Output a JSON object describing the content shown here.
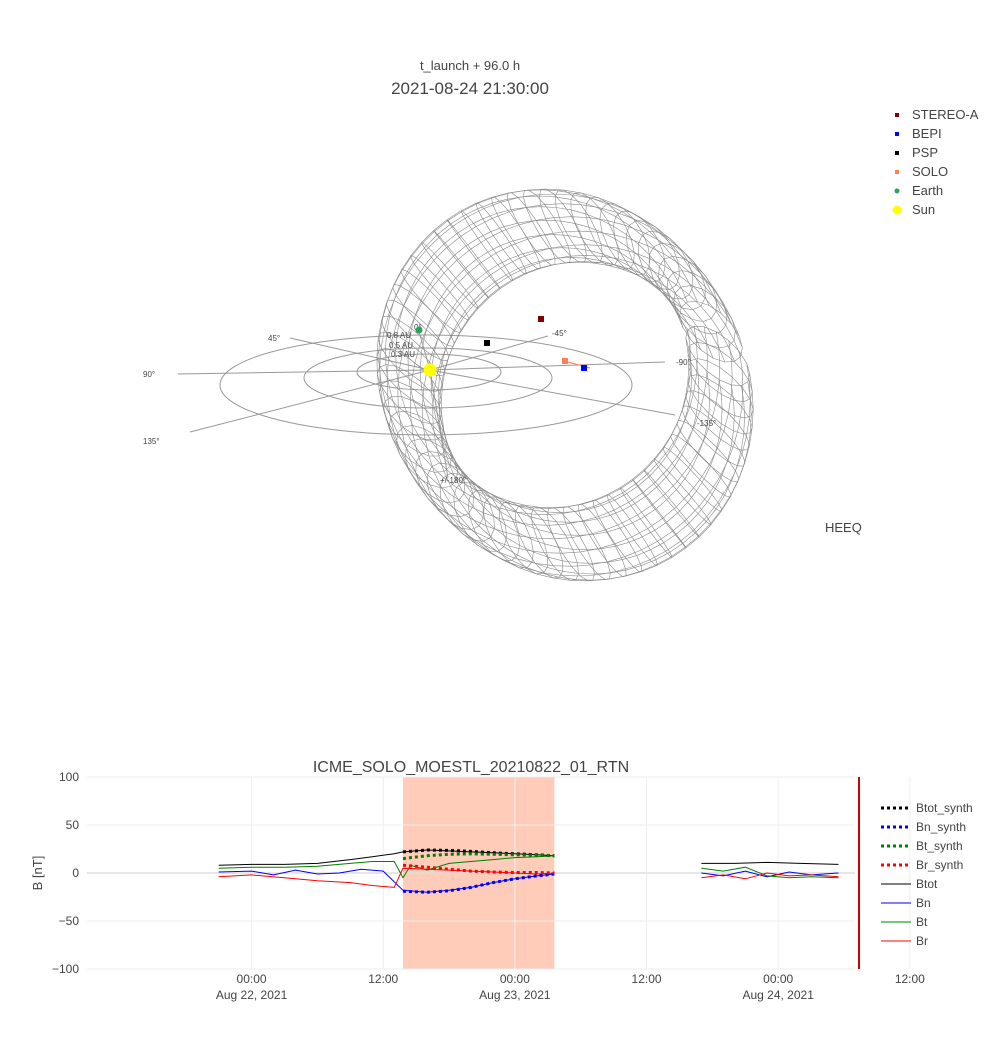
{
  "top_plot": {
    "subtitle": "t_launch + 96.0 h",
    "title": "2021-08-24 21:30:00",
    "frame_label": "HEEQ",
    "ring_labels": [
      "0.8 AU",
      "0.5 AU",
      "0.3 AU"
    ],
    "angle_labels": [
      "0°",
      "45°",
      "90°",
      "135°",
      "+/-180°",
      "-135°",
      "-90°",
      "-45°"
    ],
    "legend": [
      {
        "name": "STEREO-A",
        "color": "#800000",
        "marker": "square"
      },
      {
        "name": "BEPI",
        "color": "#0000ff",
        "marker": "square"
      },
      {
        "name": "PSP",
        "color": "#000000",
        "marker": "square"
      },
      {
        "name": "SOLO",
        "color": "#ff7f50",
        "marker": "square"
      },
      {
        "name": "Earth",
        "color": "#2ca25f",
        "marker": "circle"
      },
      {
        "name": "Sun",
        "color": "#ffff00",
        "marker": "circle"
      }
    ]
  },
  "chart_data": [
    {
      "type": "line",
      "title": "ICME_SOLO_MOESTL_20210822_01_RTN",
      "ylabel": "B [nT]",
      "ylim": [
        -100,
        100
      ],
      "yticks": [
        100,
        50,
        0,
        -50,
        -100
      ],
      "ytick_labels": [
        "100",
        "50",
        "0",
        "−50",
        "−100"
      ],
      "xlim_hours": [
        -15,
        55
      ],
      "x_ticks": [
        {
          "h": 0,
          "line1": "00:00",
          "line2": "Aug 22, 2021"
        },
        {
          "h": 12,
          "line1": "12:00",
          "line2": ""
        },
        {
          "h": 24,
          "line1": "00:00",
          "line2": "Aug 23, 2021"
        },
        {
          "h": 36,
          "line1": "12:00",
          "line2": ""
        },
        {
          "h": 48,
          "line1": "00:00",
          "line2": "Aug 24, 2021"
        },
        {
          "h": 60,
          "line1": "12:00",
          "line2": ""
        }
      ],
      "shaded_interval_hours": [
        13.8,
        27.6
      ],
      "shade_color": "#fdbba1",
      "grid": true,
      "legend_position": "right",
      "series": [
        {
          "name": "Btot_synth",
          "color": "#000000",
          "dash": true,
          "x": [
            13.8,
            16,
            18,
            20,
            22,
            24,
            26,
            27.6
          ],
          "y": [
            22,
            24,
            23.5,
            22.5,
            21,
            20,
            19,
            18
          ]
        },
        {
          "name": "Bn_synth",
          "color": "#0000ff",
          "dash": true,
          "x": [
            13.8,
            16,
            18,
            20,
            22,
            24,
            26,
            27.6
          ],
          "y": [
            -19,
            -20,
            -18.5,
            -15,
            -10,
            -6,
            -3,
            -1
          ]
        },
        {
          "name": "Bt_synth",
          "color": "#008000",
          "dash": true,
          "x": [
            13.8,
            16,
            18,
            20,
            22,
            24,
            26,
            27.6
          ],
          "y": [
            15,
            18,
            19.5,
            20,
            19.5,
            19,
            18.5,
            18
          ]
        },
        {
          "name": "Br_synth",
          "color": "#ff0000",
          "dash": true,
          "x": [
            13.8,
            16,
            18,
            20,
            22,
            24,
            26,
            27.6
          ],
          "y": [
            8,
            6,
            4,
            2,
            1,
            0.5,
            0.5,
            0
          ]
        },
        {
          "name": "Btot",
          "color": "#000000",
          "dash": false,
          "x": [
            -3,
            0,
            3,
            6,
            9,
            11,
            13,
            13.8,
            16,
            18,
            20,
            22,
            24,
            26,
            27.6,
            null,
            41,
            44,
            47,
            50,
            53.5
          ],
          "y": [
            8,
            9,
            9,
            10,
            14,
            17,
            20,
            22,
            24,
            23,
            22,
            21,
            20,
            19,
            18,
            null,
            10,
            10,
            11,
            10,
            9
          ]
        },
        {
          "name": "Bn",
          "color": "#0000ff",
          "dash": false,
          "x": [
            -3,
            0,
            2,
            4,
            6,
            8,
            10,
            12,
            13.8,
            16,
            18,
            20,
            22,
            24,
            26,
            27.6,
            null,
            41,
            43,
            45,
            47,
            49,
            51,
            53.5
          ],
          "y": [
            1,
            2,
            -2,
            3,
            -1,
            0,
            4,
            2,
            -18,
            -20,
            -18,
            -15,
            -10,
            -6,
            -3,
            -1,
            null,
            0,
            -3,
            2,
            -4,
            1,
            -2,
            0
          ]
        },
        {
          "name": "Bt",
          "color": "#008000",
          "dash": false,
          "x": [
            -3,
            0,
            3,
            6,
            9,
            11,
            13,
            13.8,
            14.5,
            16,
            18,
            20,
            22,
            24,
            26,
            27.6,
            null,
            41,
            43,
            45,
            47,
            49,
            51,
            53.5
          ],
          "y": [
            5,
            6,
            6,
            7,
            10,
            12,
            12,
            -5,
            8,
            3,
            10,
            12,
            14,
            16,
            17,
            18,
            null,
            5,
            2,
            6,
            -3,
            -5,
            -4,
            -5
          ]
        },
        {
          "name": "Br",
          "color": "#ff0000",
          "dash": false,
          "x": [
            -3,
            0,
            3,
            6,
            9,
            11,
            13,
            13.8,
            16,
            18,
            20,
            22,
            24,
            26,
            27.6,
            null,
            41,
            43,
            45,
            47,
            49,
            51,
            53.5
          ],
          "y": [
            -4,
            -2,
            -5,
            -8,
            -10,
            -13,
            -15,
            5,
            4,
            3,
            2,
            1,
            0,
            -1,
            0,
            null,
            -5,
            -2,
            -6,
            0,
            -3,
            -2,
            -4
          ]
        }
      ]
    }
  ]
}
